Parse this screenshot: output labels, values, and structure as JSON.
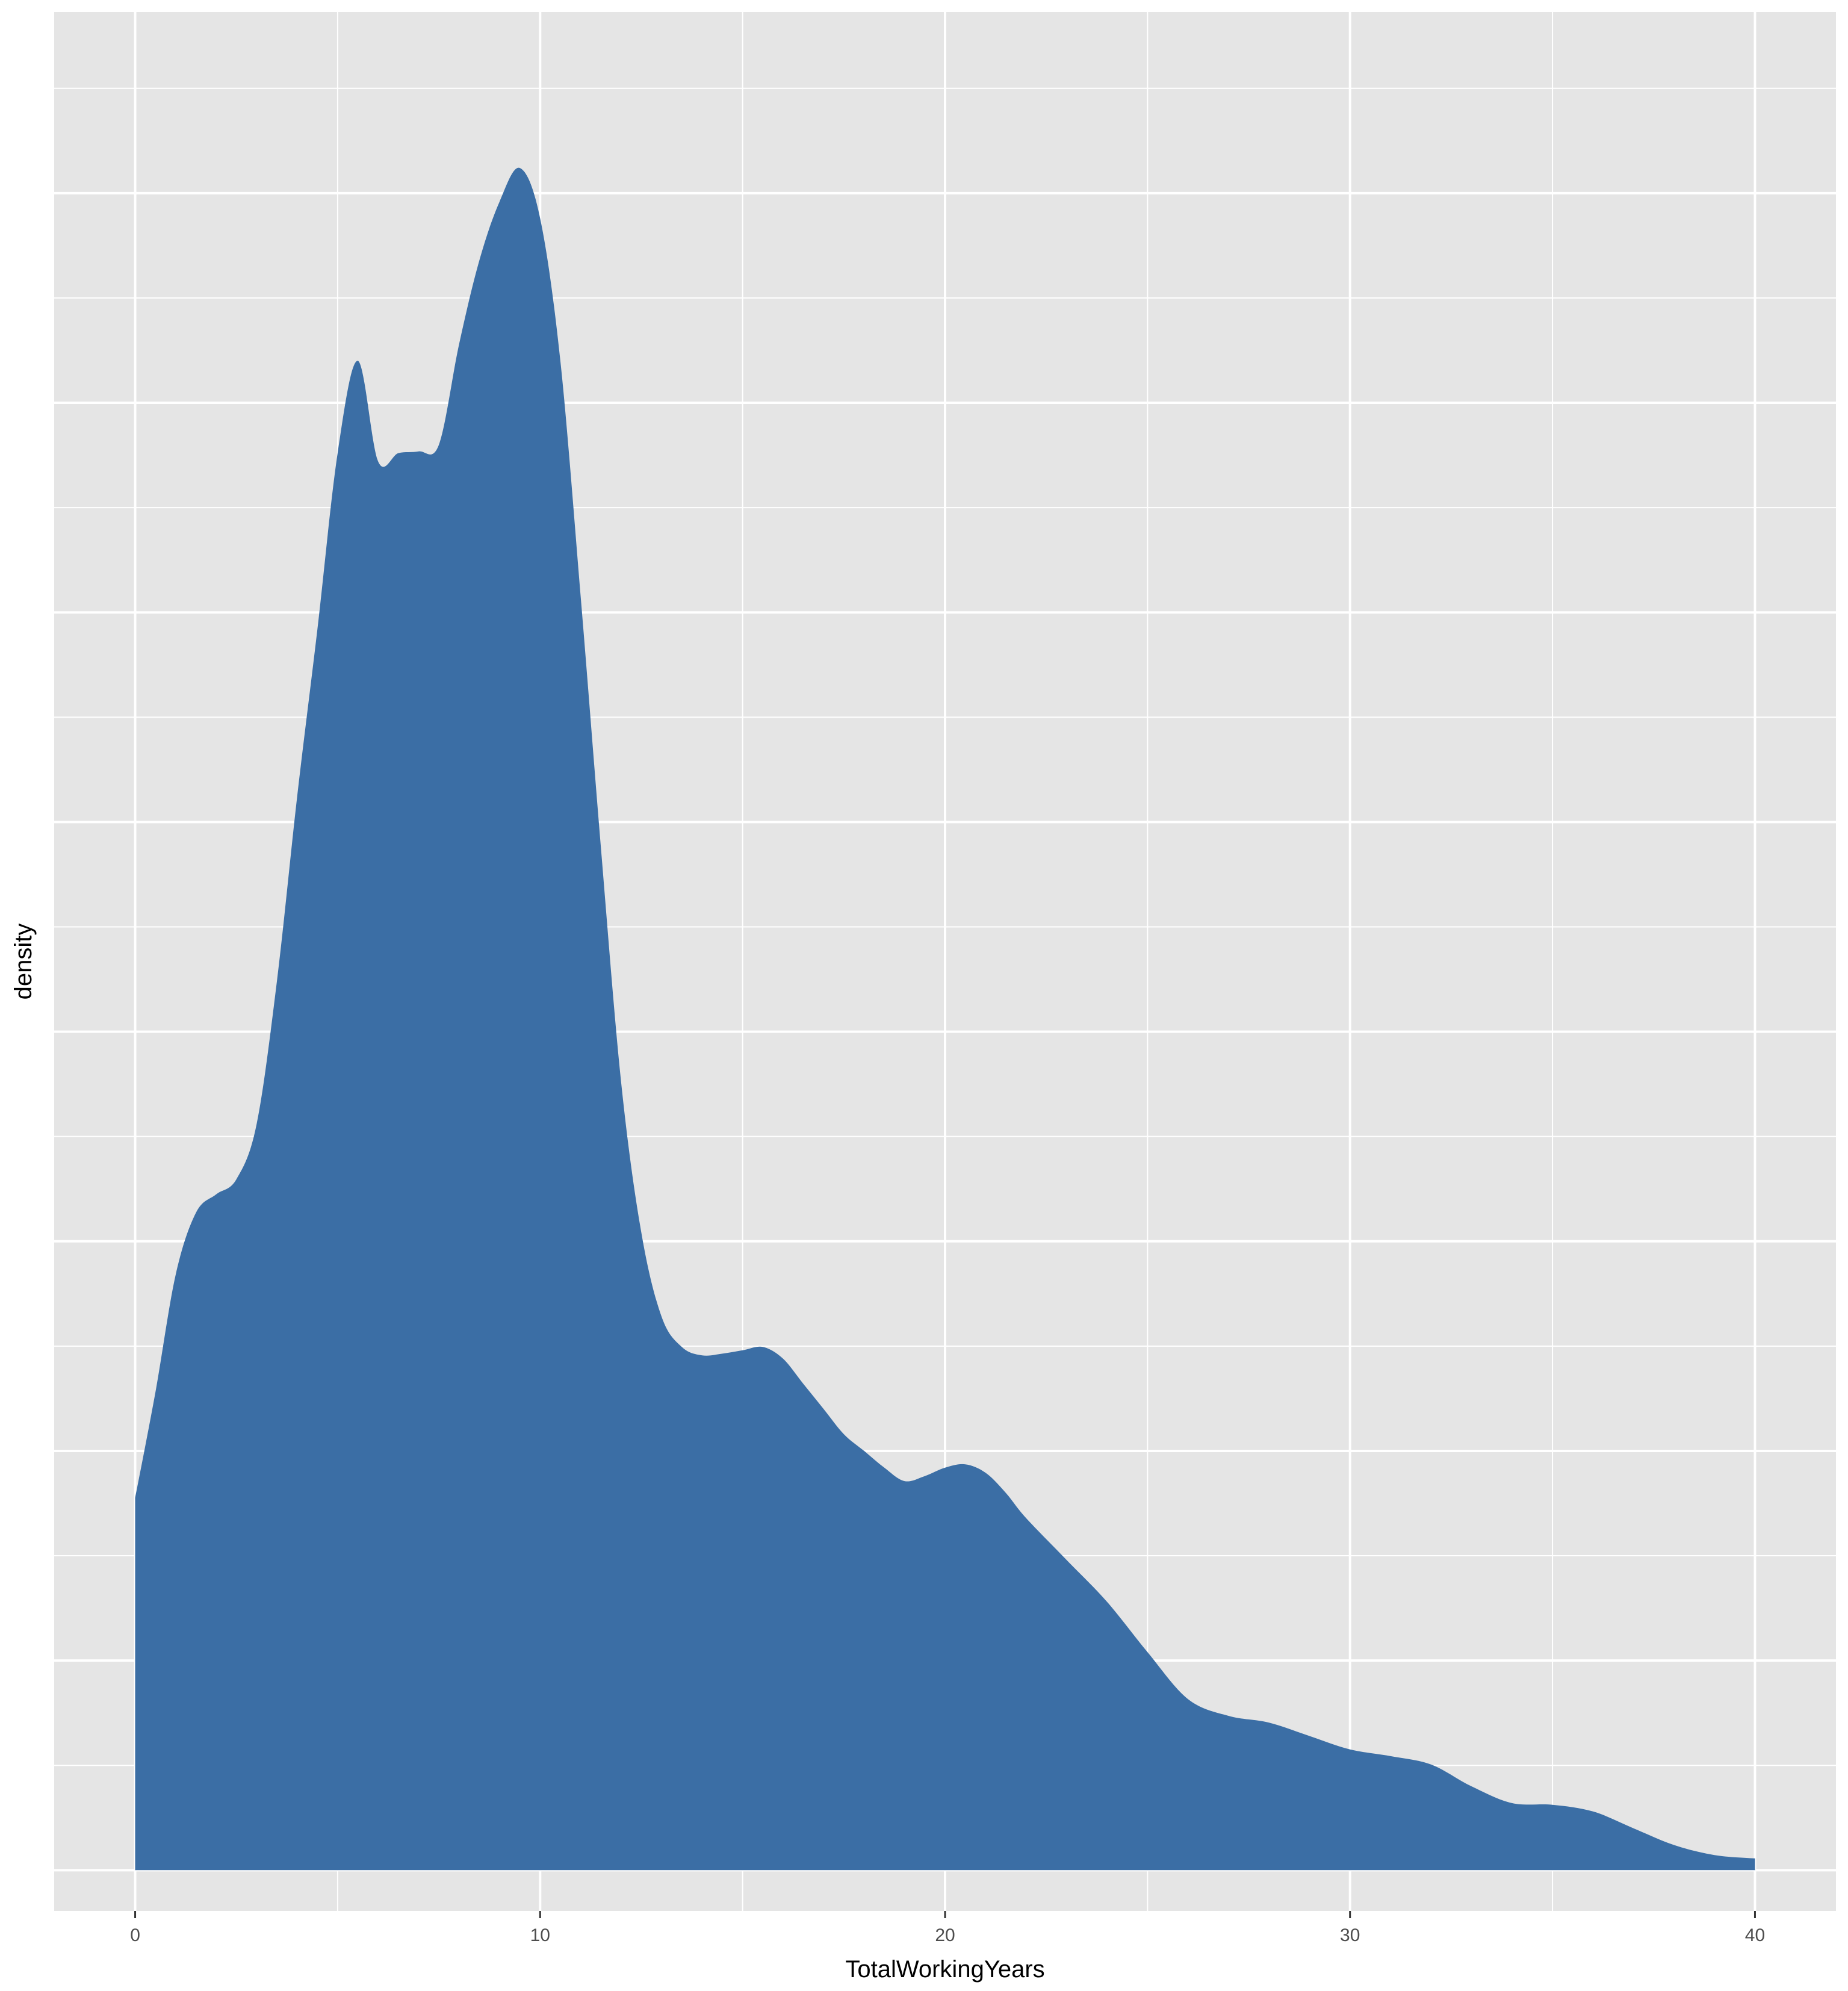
{
  "chart_data": {
    "type": "area",
    "title": "",
    "xlabel": "TotalWorkingYears",
    "ylabel": "density",
    "xlim": [
      -2,
      42
    ],
    "ylim": [
      -0.00243,
      0.1108
    ],
    "x_ticks": [
      0,
      10,
      20,
      30,
      40
    ],
    "x_tick_labels": [
      "0",
      "10",
      "20",
      "30",
      "40"
    ],
    "y_ticks_shown": false,
    "grid": true,
    "legend": "none",
    "colors": {
      "fill": "#3B6EA5",
      "panel": "#E5E5E5",
      "grid": "#FFFFFF",
      "tick_text": "#4D4D4D"
    },
    "series": [
      {
        "x": [
          0,
          0.5,
          1,
          1.5,
          2,
          2.5,
          3,
          3.5,
          4,
          4.5,
          5,
          5.5,
          6,
          6.5,
          7,
          7.5,
          8,
          8.5,
          9,
          9.5,
          10,
          10.5,
          11,
          11.5,
          12,
          12.5,
          13,
          13.5,
          14,
          14.5,
          15,
          15.5,
          16,
          16.5,
          17,
          17.5,
          18,
          18.5,
          19,
          19.5,
          20,
          20.5,
          21,
          21.5,
          22,
          23,
          24,
          25,
          26,
          27,
          28,
          29,
          30,
          31,
          32,
          33,
          34,
          35,
          36,
          37,
          38,
          39,
          40
        ],
        "y": [
          0.0222,
          0.0285,
          0.0355,
          0.0392,
          0.0403,
          0.0412,
          0.0445,
          0.053,
          0.064,
          0.074,
          0.0845,
          0.09,
          0.084,
          0.0845,
          0.0846,
          0.085,
          0.091,
          0.096,
          0.0995,
          0.1015,
          0.0985,
          0.09,
          0.076,
          0.061,
          0.047,
          0.038,
          0.033,
          0.0312,
          0.0307,
          0.0308,
          0.031,
          0.0312,
          0.0305,
          0.029,
          0.0275,
          0.026,
          0.025,
          0.024,
          0.0232,
          0.0235,
          0.024,
          0.0242,
          0.0237,
          0.0225,
          0.021,
          0.0185,
          0.016,
          0.013,
          0.0102,
          0.0092,
          0.0088,
          0.008,
          0.0072,
          0.0068,
          0.0063,
          0.005,
          0.004,
          0.0039,
          0.0035,
          0.0025,
          0.0015,
          0.0009,
          0.0007
        ]
      }
    ]
  }
}
